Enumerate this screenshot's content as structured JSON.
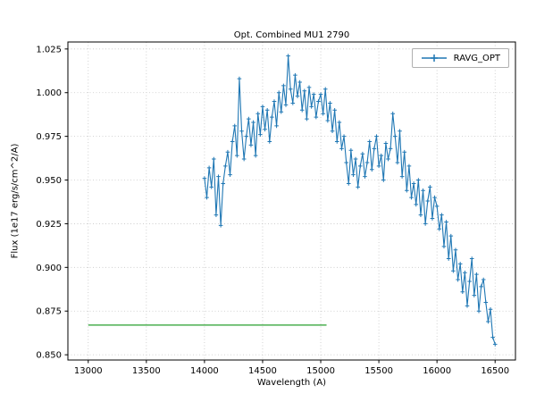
{
  "chart_data": {
    "type": "line",
    "title": "Opt. Combined MU1 2790",
    "xlabel": "Wavelength (A)",
    "ylabel": "Flux (1e17 erg/s/cm^2/A)",
    "xlim": [
      12825,
      16675
    ],
    "ylim": [
      0.847,
      1.029
    ],
    "xticks": [
      13000,
      13500,
      14000,
      14500,
      15000,
      15500,
      16000,
      16500
    ],
    "yticks": [
      0.85,
      0.875,
      0.9,
      0.925,
      0.95,
      0.975,
      1.0,
      1.025
    ],
    "grid": true,
    "grid_color": "#c6c6c6",
    "legend_position": "upper right",
    "series": [
      {
        "name": "RAVG_OPT",
        "color": "#1f77b4",
        "marker": "plus",
        "x_start": 14000,
        "x_step": 20,
        "values": [
          0.951,
          0.94,
          0.957,
          0.946,
          0.962,
          0.93,
          0.952,
          0.924,
          0.948,
          0.958,
          0.966,
          0.953,
          0.972,
          0.981,
          0.964,
          1.008,
          0.978,
          0.962,
          0.975,
          0.985,
          0.97,
          0.983,
          0.964,
          0.988,
          0.976,
          0.992,
          0.979,
          0.99,
          0.972,
          0.986,
          0.995,
          0.981,
          1.0,
          0.989,
          1.004,
          0.993,
          1.021,
          1.002,
          0.994,
          1.01,
          0.998,
          1.006,
          0.99,
          1.001,
          0.985,
          1.003,
          0.992,
          0.999,
          0.986,
          0.995,
          0.999,
          0.988,
          1.002,
          0.984,
          0.994,
          0.978,
          0.99,
          0.972,
          0.983,
          0.968,
          0.975,
          0.96,
          0.948,
          0.967,
          0.953,
          0.962,
          0.946,
          0.958,
          0.965,
          0.952,
          0.96,
          0.972,
          0.956,
          0.968,
          0.975,
          0.958,
          0.964,
          0.95,
          0.971,
          0.962,
          0.968,
          0.988,
          0.975,
          0.96,
          0.978,
          0.952,
          0.966,
          0.944,
          0.958,
          0.94,
          0.948,
          0.936,
          0.95,
          0.93,
          0.944,
          0.925,
          0.938,
          0.946,
          0.928,
          0.94,
          0.935,
          0.922,
          0.93,
          0.912,
          0.926,
          0.905,
          0.918,
          0.898,
          0.91,
          0.893,
          0.902,
          0.886,
          0.897,
          0.878,
          0.892,
          0.905,
          0.884,
          0.896,
          0.875,
          0.889,
          0.893,
          0.88,
          0.869,
          0.876,
          0.86,
          0.856
        ]
      }
    ],
    "reference_line": {
      "color": "#4caf50",
      "y": 0.867,
      "x_start": 13000,
      "x_end": 15050
    }
  }
}
